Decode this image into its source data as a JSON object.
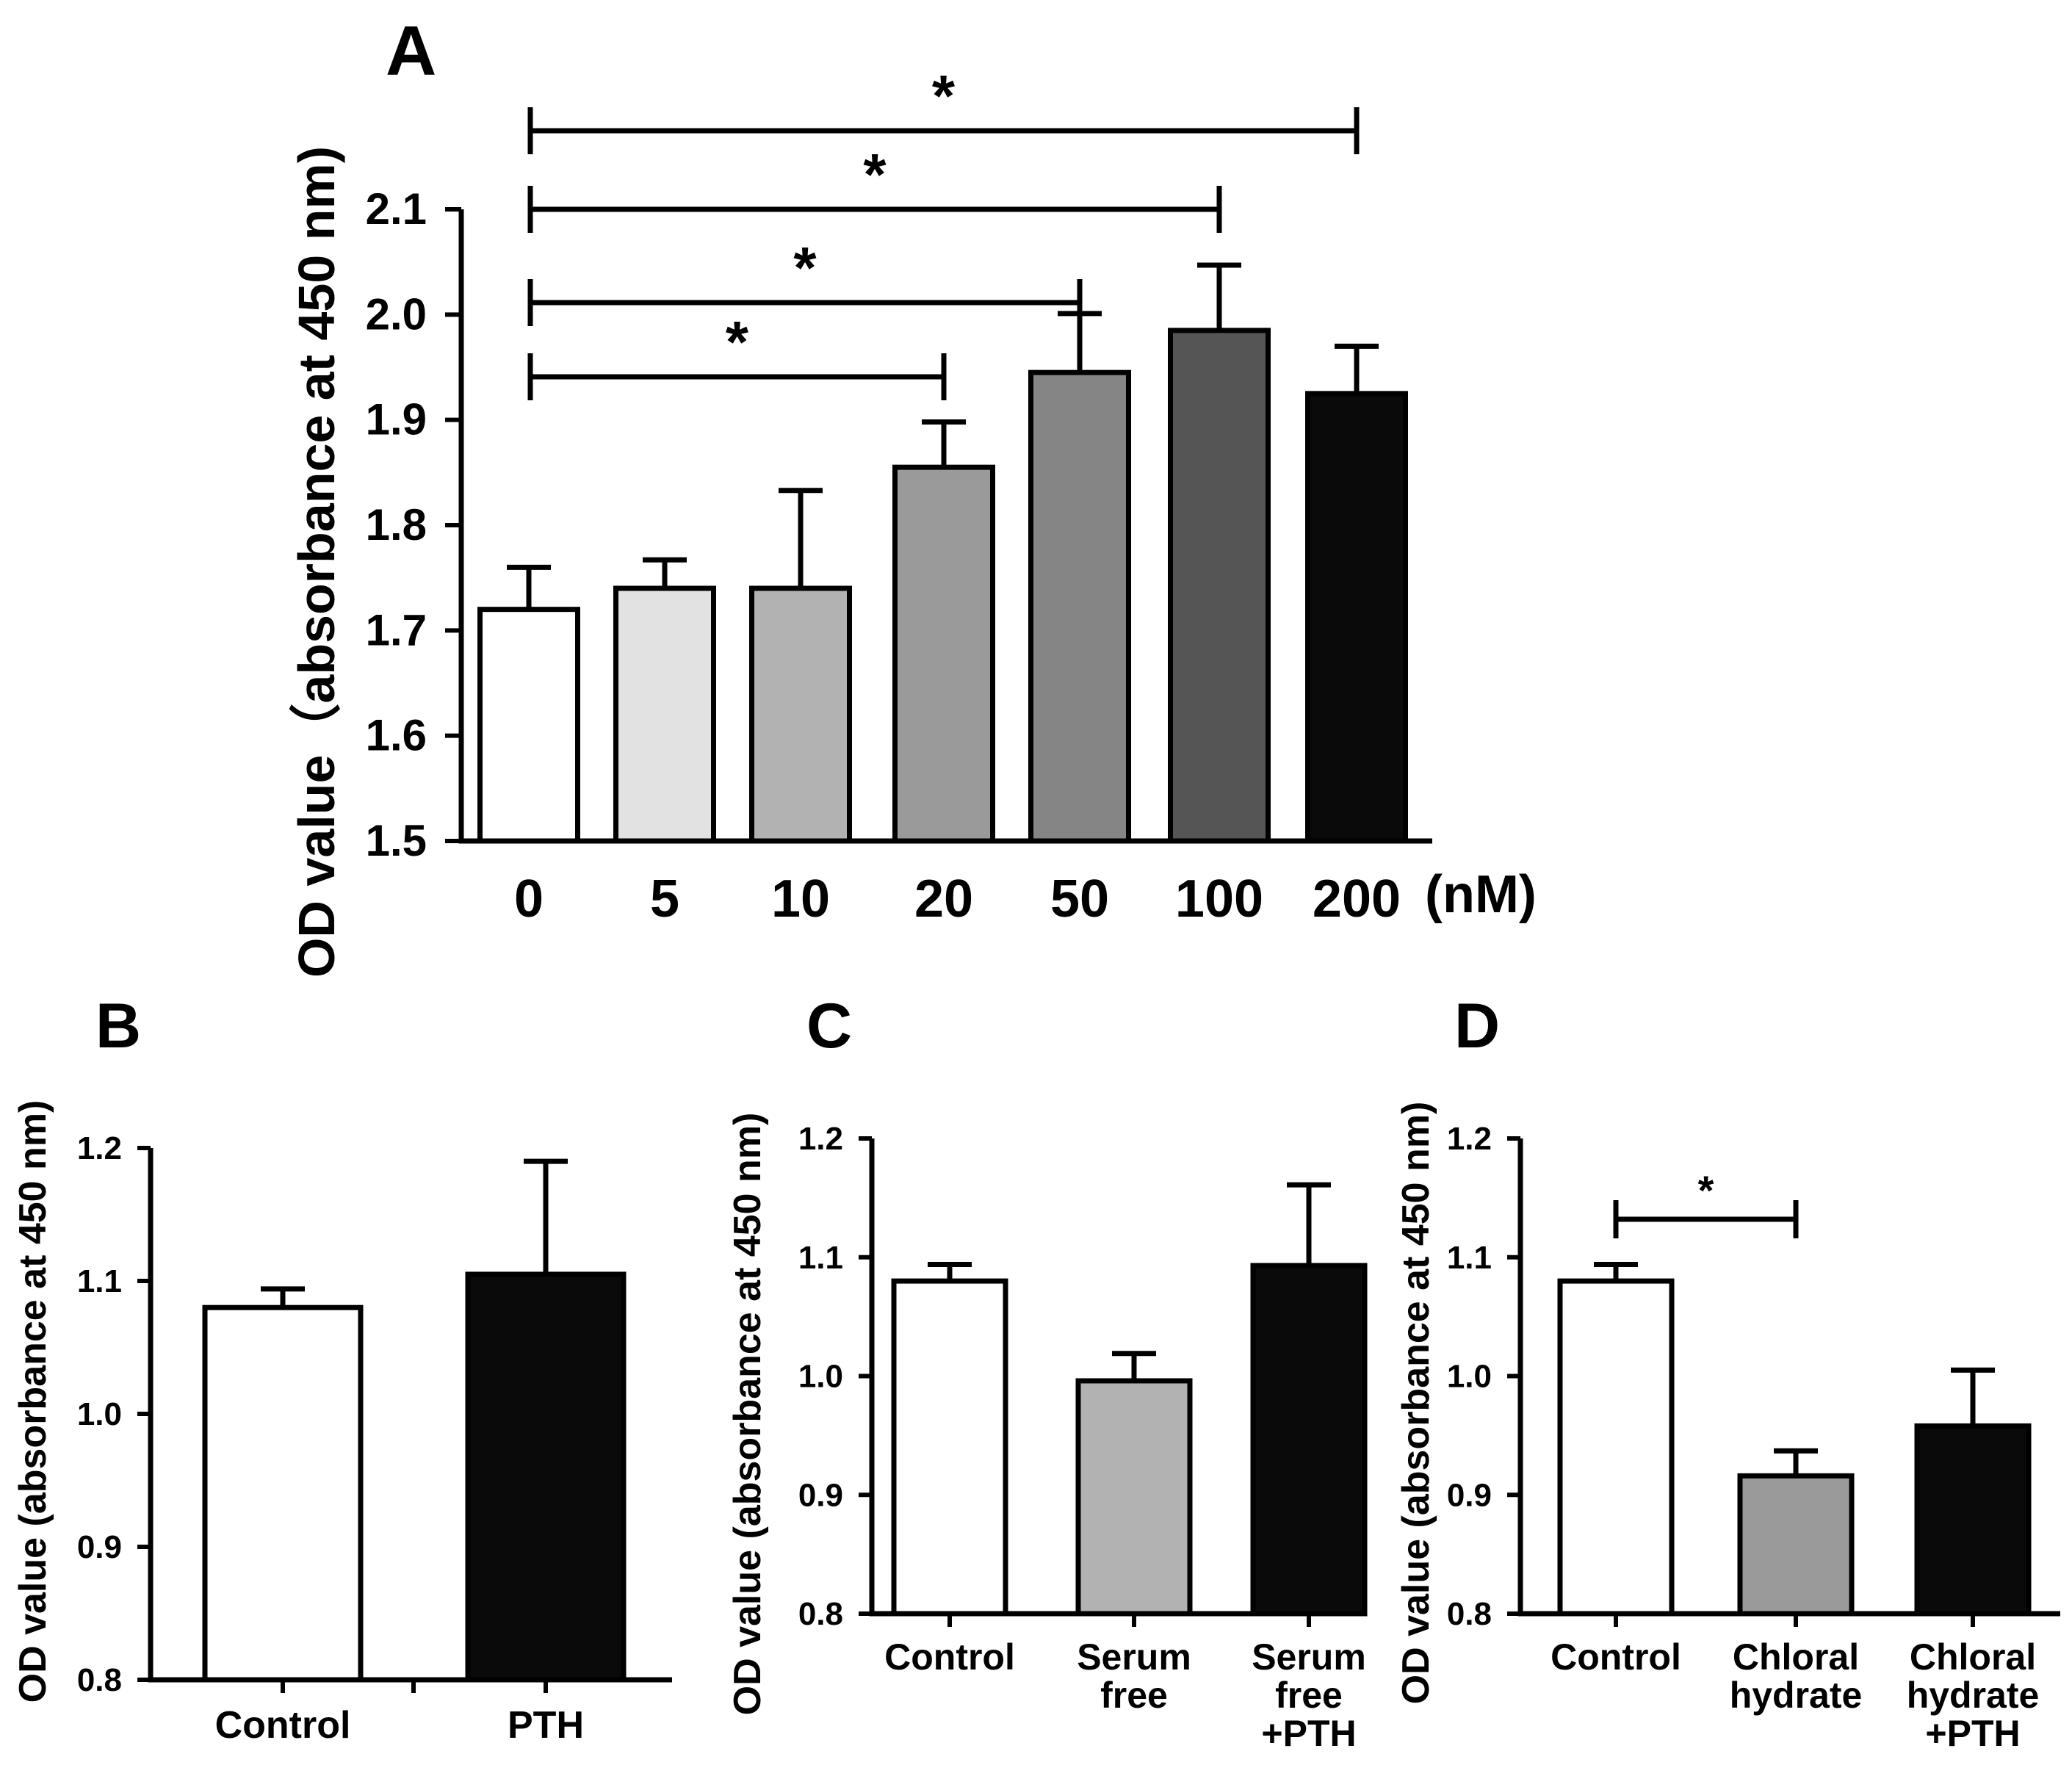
{
  "chart_data": [
    {
      "panel": "A",
      "type": "bar",
      "ylabel": "OD value（absorbance at 450 nm)",
      "xunit": "(nM)",
      "ylim": [
        1.5,
        2.1
      ],
      "yticks": [
        "1.5",
        "1.6",
        "1.7",
        "1.8",
        "1.9",
        "2.0",
        "2.1"
      ],
      "categories": [
        {
          "lines": [
            "0"
          ]
        },
        {
          "lines": [
            "5"
          ]
        },
        {
          "lines": [
            "10"
          ]
        },
        {
          "lines": [
            "20"
          ]
        },
        {
          "lines": [
            "50"
          ]
        },
        {
          "lines": [
            "100"
          ]
        },
        {
          "lines": [
            "200"
          ]
        }
      ],
      "values": [
        1.72,
        1.74,
        1.74,
        1.855,
        1.945,
        1.985,
        1.925
      ],
      "errors": [
        0.04,
        0.027,
        0.093,
        0.043,
        0.056,
        0.062,
        0.045
      ],
      "colors": [
        "#ffffff",
        "#e2e2e2",
        "#b2b2b2",
        "#9a9a9a",
        "#858585",
        "#555555",
        "#0a0a0a"
      ],
      "significance": [
        {
          "from": 0,
          "to": 3,
          "label": "*"
        },
        {
          "from": 0,
          "to": 4,
          "label": "*"
        },
        {
          "from": 0,
          "to": 5,
          "label": "*"
        },
        {
          "from": 0,
          "to": 6,
          "label": "*"
        }
      ]
    },
    {
      "panel": "B",
      "type": "bar",
      "ylabel": "OD value (absorbance at 450 nm)",
      "ylim": [
        0.8,
        1.2
      ],
      "yticks": [
        "0.8",
        "0.9",
        "1.0",
        "1.1",
        "1.2"
      ],
      "categories": [
        {
          "lines": [
            "Control"
          ]
        },
        {
          "lines": [
            "PTH"
          ]
        }
      ],
      "values": [
        1.08,
        1.105
      ],
      "errors": [
        0.014,
        0.085
      ],
      "colors": [
        "#ffffff",
        "#0a0a0a"
      ],
      "significance": []
    },
    {
      "panel": "C",
      "type": "bar",
      "ylabel": "OD value (absorbance at 450 nm)",
      "ylim": [
        0.8,
        1.2
      ],
      "yticks": [
        "0.8",
        "0.9",
        "1.0",
        "1.1",
        "1.2"
      ],
      "categories": [
        {
          "lines": [
            "Control"
          ]
        },
        {
          "lines": [
            "Serum",
            "free"
          ]
        },
        {
          "lines": [
            "Serum",
            "free",
            "+PTH"
          ]
        }
      ],
      "values": [
        1.08,
        0.996,
        1.093
      ],
      "errors": [
        0.014,
        0.023,
        0.068
      ],
      "colors": [
        "#ffffff",
        "#b2b2b2",
        "#0a0a0a"
      ],
      "significance": []
    },
    {
      "panel": "D",
      "type": "bar",
      "ylabel": "OD value (absorbance at 450 nm)",
      "ylim": [
        0.8,
        1.2
      ],
      "yticks": [
        "0.8",
        "0.9",
        "1.0",
        "1.1",
        "1.2"
      ],
      "categories": [
        {
          "lines": [
            "Control"
          ]
        },
        {
          "lines": [
            "Chloral",
            "hydrate"
          ]
        },
        {
          "lines": [
            "Chloral",
            "hydrate",
            "+PTH"
          ]
        }
      ],
      "values": [
        1.08,
        0.916,
        0.958
      ],
      "errors": [
        0.014,
        0.021,
        0.047
      ],
      "colors": [
        "#ffffff",
        "#9a9a9a",
        "#0a0a0a"
      ],
      "significance": [
        {
          "from": 0,
          "to": 1,
          "label": "*"
        }
      ]
    }
  ]
}
